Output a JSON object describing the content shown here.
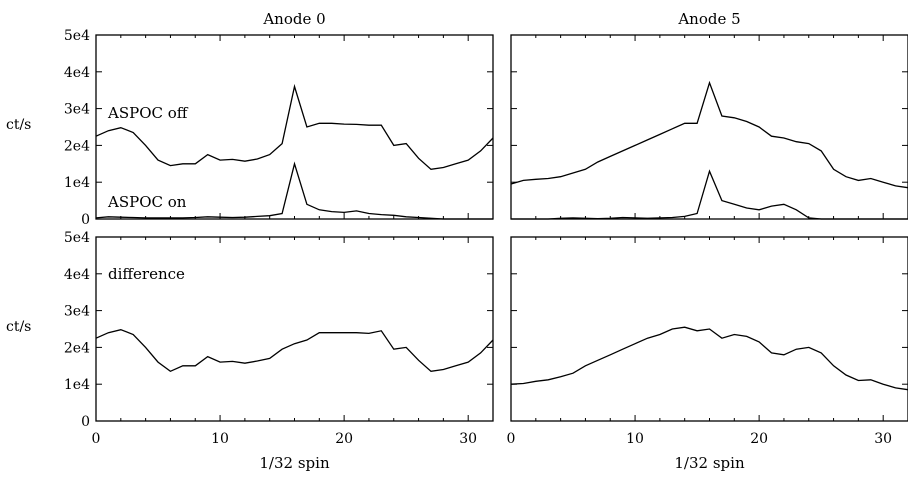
{
  "chart_data": [
    {
      "id": "anode0-top",
      "type": "line",
      "title": "Anode 0",
      "xlabel": "",
      "ylabel": "ct/s",
      "xlim": [
        0,
        32
      ],
      "ylim": [
        0,
        50000
      ],
      "xticks": [],
      "yticks": [
        "0",
        "1e4",
        "2e4",
        "3e4",
        "4e4",
        "5e4"
      ],
      "grid": false,
      "annotations": [
        "ASPOC off",
        "ASPOC on"
      ],
      "series": [
        {
          "x": [
            0,
            1,
            2,
            3,
            4,
            5,
            6,
            7,
            8,
            9,
            10,
            11,
            12,
            13,
            14,
            15,
            16,
            17,
            18,
            19,
            20,
            21,
            22,
            23,
            24,
            25,
            26,
            27,
            28,
            29,
            30,
            31,
            32
          ],
          "values": [
            22500,
            24000,
            24800,
            23500,
            20000,
            16000,
            14500,
            15000,
            15000,
            17500,
            16000,
            16200,
            15700,
            16300,
            17500,
            20500,
            36000,
            25000,
            26000,
            26000,
            25800,
            25700,
            25500,
            25500,
            20000,
            20500,
            16500,
            13500,
            14000,
            15000,
            16000,
            18500,
            22000
          ]
        },
        {
          "x": [
            0,
            1,
            2,
            3,
            4,
            5,
            6,
            7,
            8,
            9,
            10,
            11,
            12,
            13,
            14,
            15,
            16,
            17,
            18,
            19,
            20,
            21,
            22,
            23,
            24,
            25,
            26,
            27,
            28,
            29,
            30,
            31,
            32
          ],
          "values": [
            300,
            600,
            500,
            400,
            300,
            300,
            300,
            300,
            400,
            600,
            500,
            400,
            500,
            700,
            900,
            1500,
            15000,
            4000,
            2500,
            2000,
            1800,
            2200,
            1500,
            1200,
            1000,
            600,
            400,
            200,
            0,
            0,
            0,
            0,
            0
          ]
        }
      ]
    },
    {
      "id": "anode5-top",
      "type": "line",
      "title": "Anode 5",
      "xlabel": "",
      "ylabel": "",
      "xlim": [
        0,
        32
      ],
      "ylim": [
        0,
        50000
      ],
      "xticks": [],
      "yticks": [],
      "grid": false,
      "series": [
        {
          "x": [
            0,
            1,
            2,
            3,
            4,
            5,
            6,
            7,
            8,
            9,
            10,
            11,
            12,
            13,
            14,
            15,
            16,
            17,
            18,
            19,
            20,
            21,
            22,
            23,
            24,
            25,
            26,
            27,
            28,
            29,
            30,
            31,
            32
          ],
          "values": [
            9500,
            10500,
            10800,
            11000,
            11500,
            12500,
            13500,
            15500,
            17000,
            18500,
            20000,
            21500,
            23000,
            24500,
            26000,
            26000,
            37000,
            28000,
            27500,
            26500,
            25000,
            22500,
            22000,
            21000,
            20500,
            18500,
            13500,
            11500,
            10500,
            11000,
            10000,
            9000,
            8500
          ]
        },
        {
          "x": [
            0,
            1,
            2,
            3,
            4,
            5,
            6,
            7,
            8,
            9,
            10,
            11,
            12,
            13,
            14,
            15,
            16,
            17,
            18,
            19,
            20,
            21,
            22,
            23,
            24,
            25,
            26,
            27,
            28,
            29,
            30,
            31,
            32
          ],
          "values": [
            0,
            0,
            0,
            0,
            200,
            300,
            200,
            100,
            200,
            400,
            300,
            200,
            300,
            400,
            700,
            1500,
            13000,
            5000,
            4000,
            3000,
            2500,
            3500,
            4000,
            2500,
            300,
            0,
            0,
            0,
            0,
            0,
            0,
            0,
            0
          ]
        }
      ]
    },
    {
      "id": "anode0-bottom",
      "type": "line",
      "title": "",
      "xlabel": "1/32 spin",
      "ylabel": "ct/s",
      "xlim": [
        0,
        32
      ],
      "ylim": [
        0,
        50000
      ],
      "xticks": [
        "0",
        "10",
        "20",
        "30"
      ],
      "yticks": [
        "0",
        "1e4",
        "2e4",
        "3e4",
        "4e4",
        "5e4"
      ],
      "grid": false,
      "annotations": [
        "difference"
      ],
      "series": [
        {
          "x": [
            0,
            1,
            2,
            3,
            4,
            5,
            6,
            7,
            8,
            9,
            10,
            11,
            12,
            13,
            14,
            15,
            16,
            17,
            18,
            19,
            20,
            21,
            22,
            23,
            24,
            25,
            26,
            27,
            28,
            29,
            30,
            31,
            32
          ],
          "values": [
            22500,
            24000,
            24800,
            23500,
            20000,
            16000,
            13500,
            15000,
            15000,
            17500,
            16000,
            16200,
            15700,
            16300,
            17000,
            19500,
            21000,
            22000,
            24000,
            24000,
            24000,
            24000,
            23800,
            24500,
            19500,
            20000,
            16500,
            13500,
            14000,
            15000,
            16000,
            18500,
            22000
          ]
        }
      ]
    },
    {
      "id": "anode5-bottom",
      "type": "line",
      "title": "",
      "xlabel": "1/32 spin",
      "ylabel": "",
      "xlim": [
        0,
        32
      ],
      "ylim": [
        0,
        50000
      ],
      "xticks": [
        "0",
        "10",
        "20",
        "30"
      ],
      "yticks": [],
      "grid": false,
      "series": [
        {
          "x": [
            0,
            1,
            2,
            3,
            4,
            5,
            6,
            7,
            8,
            9,
            10,
            11,
            12,
            13,
            14,
            15,
            16,
            17,
            18,
            19,
            20,
            21,
            22,
            23,
            24,
            25,
            26,
            27,
            28,
            29,
            30,
            31,
            32
          ],
          "values": [
            10000,
            10200,
            10800,
            11200,
            12000,
            13000,
            15000,
            16500,
            18000,
            19500,
            21000,
            22500,
            23500,
            25000,
            25500,
            24500,
            25000,
            22500,
            23500,
            23000,
            21500,
            18500,
            18000,
            19500,
            20000,
            18500,
            15000,
            12500,
            11000,
            11200,
            10000,
            9000,
            8500
          ]
        }
      ]
    }
  ]
}
